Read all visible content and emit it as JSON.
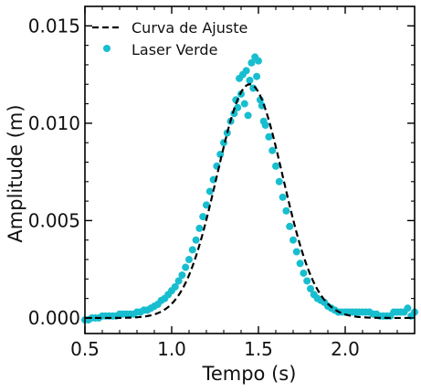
{
  "chart_data": {
    "type": "scatter",
    "title": "",
    "xlabel": "Tempo (s)",
    "ylabel": "Amplitude (m)",
    "xlim": [
      0.5,
      2.4
    ],
    "ylim": [
      -0.0008,
      0.016
    ],
    "x_ticks": [
      0.5,
      1.0,
      1.5,
      2.0
    ],
    "x_tick_labels": [
      "0.5",
      "1.0",
      "1.5",
      "2.0"
    ],
    "y_ticks": [
      0.0,
      0.005,
      0.01,
      0.015
    ],
    "y_tick_labels": [
      "0.000",
      "0.005",
      "0.010",
      "0.015"
    ],
    "legend_position": "top-left",
    "colors": {
      "fit": "#000000",
      "points": "#17becf"
    },
    "series": [
      {
        "name": "Curva de Ajuste",
        "kind": "line",
        "style": "dashed",
        "model": "gaussian",
        "amplitude": 0.012,
        "center": 1.45,
        "sigma": 0.19,
        "offset": 0.0
      },
      {
        "name": "Laser Verde",
        "kind": "scatter",
        "x": [
          0.5,
          0.52,
          0.54,
          0.56,
          0.58,
          0.6,
          0.62,
          0.64,
          0.66,
          0.68,
          0.7,
          0.72,
          0.74,
          0.76,
          0.78,
          0.8,
          0.82,
          0.84,
          0.86,
          0.88,
          0.9,
          0.92,
          0.94,
          0.96,
          0.98,
          1.0,
          1.02,
          1.04,
          1.06,
          1.08,
          1.1,
          1.12,
          1.14,
          1.16,
          1.18,
          1.2,
          1.22,
          1.24,
          1.26,
          1.28,
          1.3,
          1.32,
          1.34,
          1.36,
          1.37,
          1.38,
          1.39,
          1.4,
          1.41,
          1.42,
          1.43,
          1.44,
          1.45,
          1.46,
          1.47,
          1.48,
          1.49,
          1.5,
          1.51,
          1.52,
          1.53,
          1.54,
          1.56,
          1.58,
          1.6,
          1.62,
          1.64,
          1.66,
          1.68,
          1.7,
          1.72,
          1.74,
          1.76,
          1.78,
          1.8,
          1.82,
          1.84,
          1.86,
          1.88,
          1.9,
          1.92,
          1.94,
          1.96,
          1.98,
          2.0,
          2.02,
          2.04,
          2.06,
          2.08,
          2.1,
          2.12,
          2.14,
          2.16,
          2.18,
          2.2,
          2.22,
          2.24,
          2.26,
          2.28,
          2.3,
          2.32,
          2.34,
          2.36,
          2.38,
          2.4
        ],
        "y": [
          -0.0001,
          -0.0001,
          0.0,
          0.0,
          0.0,
          0.0001,
          0.0001,
          0.0001,
          0.0001,
          0.0001,
          0.0002,
          0.0002,
          0.0002,
          0.0002,
          0.0002,
          0.0003,
          0.0003,
          0.0004,
          0.0004,
          0.0005,
          0.0006,
          0.0007,
          0.0009,
          0.001,
          0.0012,
          0.0014,
          0.0016,
          0.0019,
          0.0022,
          0.0026,
          0.003,
          0.0035,
          0.004,
          0.0046,
          0.0052,
          0.0058,
          0.0065,
          0.0071,
          0.0078,
          0.0084,
          0.009,
          0.0095,
          0.0101,
          0.0105,
          0.0112,
          0.0108,
          0.0123,
          0.0115,
          0.0125,
          0.011,
          0.0127,
          0.0104,
          0.0122,
          0.0131,
          0.0118,
          0.0134,
          0.0124,
          0.0132,
          0.0112,
          0.0109,
          0.0101,
          0.0099,
          0.0093,
          0.0086,
          0.0078,
          0.007,
          0.0062,
          0.0055,
          0.0047,
          0.004,
          0.0034,
          0.0028,
          0.0023,
          0.0019,
          0.0015,
          0.0012,
          0.001,
          0.0009,
          0.0008,
          0.0006,
          0.0005,
          0.0004,
          0.0003,
          0.0003,
          0.0003,
          0.0003,
          0.0003,
          0.0003,
          0.0003,
          0.0003,
          0.0003,
          0.0003,
          0.0002,
          0.0002,
          0.0001,
          0.0001,
          0.0001,
          0.0001,
          0.0003,
          0.0003,
          0.0003,
          0.0003,
          0.0005,
          0.0001,
          0.0003
        ]
      }
    ]
  }
}
